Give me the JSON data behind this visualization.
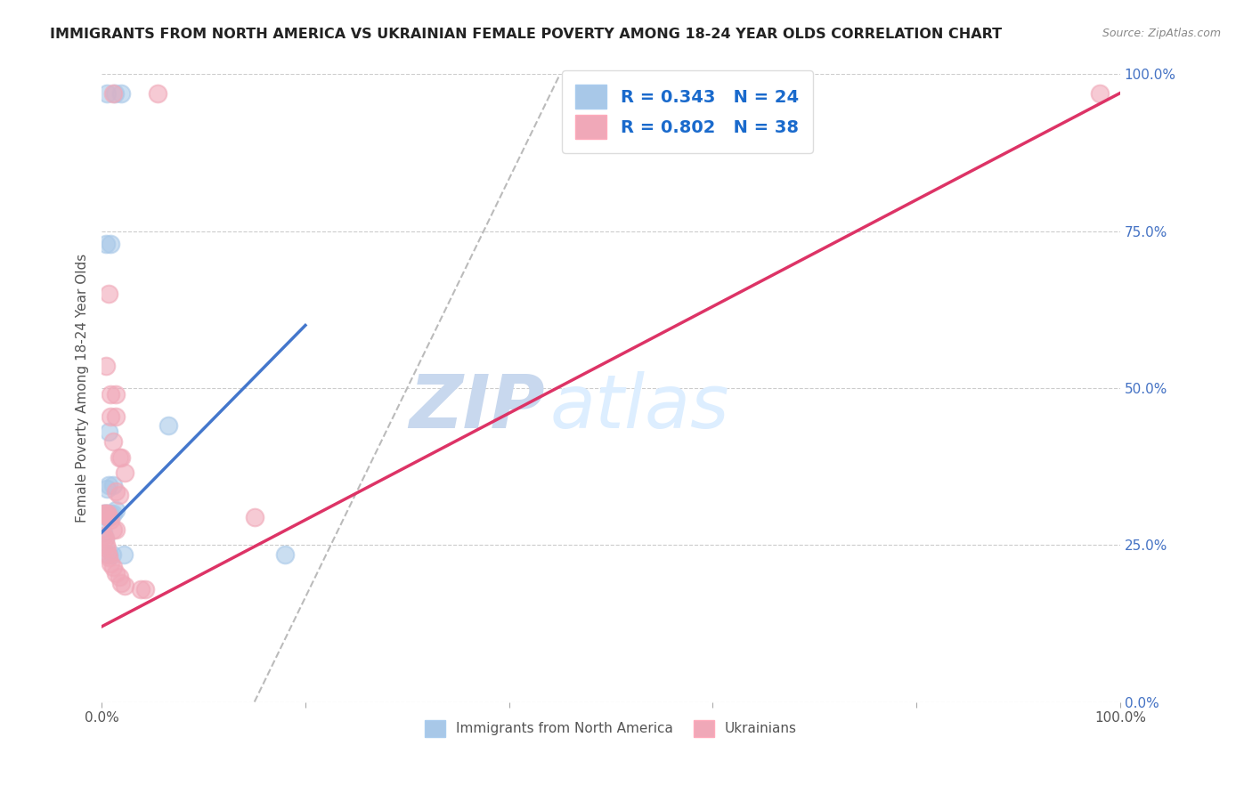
{
  "title": "IMMIGRANTS FROM NORTH AMERICA VS UKRAINIAN FEMALE POVERTY AMONG 18-24 YEAR OLDS CORRELATION CHART",
  "source": "Source: ZipAtlas.com",
  "ylabel": "Female Poverty Among 18-24 Year Olds",
  "right_yticks": [
    0.0,
    0.25,
    0.5,
    0.75,
    1.0
  ],
  "right_yticklabels": [
    "0.0%",
    "25.0%",
    "50.0%",
    "75.0%",
    "100.0%"
  ],
  "xlim": [
    0.0,
    1.0
  ],
  "ylim": [
    0.0,
    1.0
  ],
  "blue_R": 0.343,
  "blue_N": 24,
  "pink_R": 0.802,
  "pink_N": 38,
  "blue_label": "Immigrants from North America",
  "pink_label": "Ukrainians",
  "blue_color": "#a8c8e8",
  "pink_color": "#f0a8b8",
  "blue_line_color": "#4477cc",
  "pink_line_color": "#dd3366",
  "blue_scatter": [
    [
      0.005,
      0.97
    ],
    [
      0.013,
      0.97
    ],
    [
      0.019,
      0.97
    ],
    [
      0.004,
      0.73
    ],
    [
      0.009,
      0.73
    ],
    [
      0.065,
      0.44
    ],
    [
      0.007,
      0.43
    ],
    [
      0.005,
      0.34
    ],
    [
      0.007,
      0.345
    ],
    [
      0.011,
      0.345
    ],
    [
      0.002,
      0.3
    ],
    [
      0.003,
      0.3
    ],
    [
      0.004,
      0.3
    ],
    [
      0.006,
      0.3
    ],
    [
      0.007,
      0.295
    ],
    [
      0.009,
      0.3
    ],
    [
      0.011,
      0.3
    ],
    [
      0.014,
      0.305
    ],
    [
      0.002,
      0.27
    ],
    [
      0.003,
      0.26
    ],
    [
      0.007,
      0.235
    ],
    [
      0.01,
      0.235
    ],
    [
      0.022,
      0.235
    ],
    [
      0.18,
      0.235
    ]
  ],
  "pink_scatter": [
    [
      0.011,
      0.97
    ],
    [
      0.055,
      0.97
    ],
    [
      0.007,
      0.65
    ],
    [
      0.004,
      0.535
    ],
    [
      0.009,
      0.49
    ],
    [
      0.014,
      0.49
    ],
    [
      0.009,
      0.455
    ],
    [
      0.014,
      0.455
    ],
    [
      0.011,
      0.415
    ],
    [
      0.017,
      0.39
    ],
    [
      0.019,
      0.39
    ],
    [
      0.023,
      0.365
    ],
    [
      0.014,
      0.335
    ],
    [
      0.017,
      0.33
    ],
    [
      0.002,
      0.3
    ],
    [
      0.003,
      0.3
    ],
    [
      0.005,
      0.3
    ],
    [
      0.006,
      0.3
    ],
    [
      0.007,
      0.295
    ],
    [
      0.009,
      0.29
    ],
    [
      0.011,
      0.275
    ],
    [
      0.014,
      0.275
    ],
    [
      0.002,
      0.265
    ],
    [
      0.003,
      0.26
    ],
    [
      0.004,
      0.25
    ],
    [
      0.005,
      0.245
    ],
    [
      0.006,
      0.235
    ],
    [
      0.007,
      0.23
    ],
    [
      0.009,
      0.22
    ],
    [
      0.011,
      0.215
    ],
    [
      0.014,
      0.205
    ],
    [
      0.017,
      0.2
    ],
    [
      0.019,
      0.19
    ],
    [
      0.023,
      0.185
    ],
    [
      0.038,
      0.18
    ],
    [
      0.043,
      0.18
    ],
    [
      0.15,
      0.295
    ],
    [
      0.98,
      0.97
    ]
  ],
  "blue_line": [
    [
      0.0,
      0.27
    ],
    [
      0.2,
      0.6
    ]
  ],
  "pink_line": [
    [
      0.0,
      0.12
    ],
    [
      1.0,
      0.97
    ]
  ],
  "gray_line": [
    [
      0.15,
      0.0
    ],
    [
      0.45,
      1.0
    ]
  ],
  "watermark_zip": "ZIP",
  "watermark_atlas": "atlas",
  "background_color": "#ffffff",
  "grid_color": "#cccccc"
}
